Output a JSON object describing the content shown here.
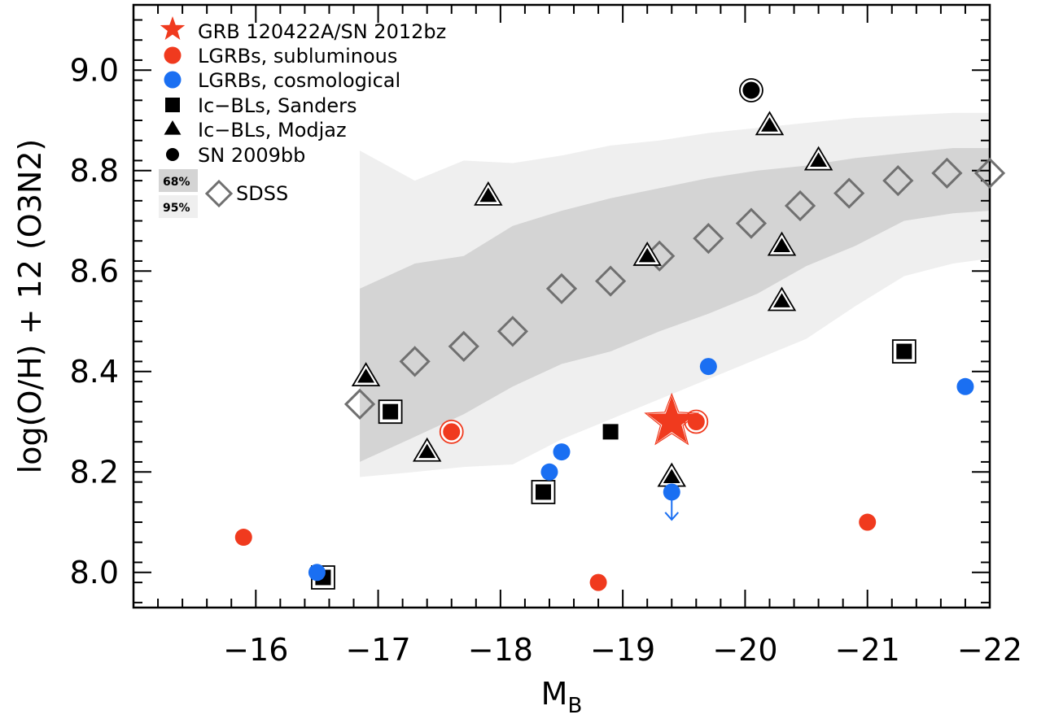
{
  "chart_data": {
    "type": "scatter",
    "xlabel": "M",
    "xlabel_sub": "B",
    "ylabel": "log(O/H) + 12 (O3N2)",
    "xlim": [
      -15,
      -22
    ],
    "ylim": [
      7.93,
      9.13
    ],
    "x_inverted": true,
    "x_ticks": [
      -16,
      -17,
      -18,
      -19,
      -20,
      -21,
      -22
    ],
    "x_tick_labels": [
      "−16",
      "−17",
      "−18",
      "−19",
      "−20",
      "−21",
      "−22"
    ],
    "y_ticks": [
      8.0,
      8.2,
      8.4,
      8.6,
      8.8,
      9.0
    ],
    "y_tick_labels": [
      "8.0",
      "8.2",
      "8.4",
      "8.6",
      "8.8",
      "9.0"
    ],
    "legend_position": "top-left",
    "colors": {
      "red": "#f03a1e",
      "blue": "#1a6ff2",
      "black": "#000000",
      "diamond": "#707070",
      "band68": "#d4d4d4",
      "band95": "#efefef"
    },
    "series": [
      {
        "name": "GRB 120422A/SN 2012bz",
        "marker": "star",
        "color": "#f03a1e",
        "points": [
          [
            -19.4,
            8.3
          ]
        ]
      },
      {
        "name": "LGRBs, subluminous",
        "marker": "circle",
        "color": "#f03a1e",
        "points": [
          [
            -15.9,
            8.07
          ],
          [
            -17.6,
            8.28
          ],
          [
            -18.8,
            7.98
          ],
          [
            -19.6,
            8.3
          ],
          [
            -21.0,
            8.1
          ]
        ],
        "ringed": [
          false,
          true,
          false,
          true,
          false
        ]
      },
      {
        "name": "LGRBs, cosmological",
        "marker": "circle",
        "color": "#1a6ff2",
        "points": [
          [
            -16.5,
            8.0
          ],
          [
            -18.4,
            8.2
          ],
          [
            -18.5,
            8.24
          ],
          [
            -19.4,
            8.16
          ],
          [
            -19.7,
            8.41
          ],
          [
            -21.8,
            8.37
          ]
        ],
        "upper_limit": [
          false,
          false,
          false,
          true,
          false,
          false
        ]
      },
      {
        "name": "Ic−BLs, Sanders",
        "marker": "square",
        "color": "#000000",
        "points": [
          [
            -16.55,
            7.99
          ],
          [
            -17.1,
            8.32
          ],
          [
            -18.35,
            8.16
          ],
          [
            -18.9,
            8.28
          ],
          [
            -21.3,
            8.44
          ]
        ],
        "ringed": [
          true,
          true,
          true,
          false,
          true
        ]
      },
      {
        "name": "Ic−BLs, Modjaz",
        "marker": "triangle",
        "color": "#000000",
        "points": [
          [
            -16.9,
            8.39
          ],
          [
            -17.4,
            8.24
          ],
          [
            -17.9,
            8.75
          ],
          [
            -19.2,
            8.63
          ],
          [
            -19.4,
            8.19
          ],
          [
            -20.2,
            8.89
          ],
          [
            -20.3,
            8.65
          ],
          [
            -20.3,
            8.54
          ],
          [
            -20.6,
            8.82
          ]
        ]
      },
      {
        "name": "SN 2009bb",
        "marker": "circle",
        "color": "#000000",
        "points": [
          [
            -20.05,
            8.96
          ]
        ],
        "ringed": [
          true
        ]
      },
      {
        "name": "SDSS",
        "marker": "diamond",
        "color": "#707070",
        "points": [
          [
            -16.85,
            8.335
          ],
          [
            -17.3,
            8.42
          ],
          [
            -17.7,
            8.45
          ],
          [
            -18.1,
            8.48
          ],
          [
            -18.5,
            8.565
          ],
          [
            -18.9,
            8.58
          ],
          [
            -19.3,
            8.63
          ],
          [
            -19.7,
            8.665
          ],
          [
            -20.05,
            8.695
          ],
          [
            -20.45,
            8.73
          ],
          [
            -20.85,
            8.755
          ],
          [
            -21.25,
            8.78
          ],
          [
            -21.65,
            8.795
          ],
          [
            -22.0,
            8.795
          ]
        ]
      }
    ],
    "bands": [
      {
        "name": "95%",
        "x": [
          -16.85,
          -17.3,
          -17.7,
          -18.1,
          -18.5,
          -18.9,
          -19.3,
          -19.7,
          -20.1,
          -20.5,
          -20.9,
          -21.3,
          -21.7,
          -22.0
        ],
        "upper": [
          8.84,
          8.78,
          8.82,
          8.815,
          8.83,
          8.85,
          8.86,
          8.875,
          8.885,
          8.895,
          8.905,
          8.91,
          8.915,
          8.915
        ],
        "lower": [
          8.19,
          8.2,
          8.21,
          8.215,
          8.265,
          8.305,
          8.345,
          8.385,
          8.425,
          8.465,
          8.53,
          8.59,
          8.615,
          8.625
        ]
      },
      {
        "name": "68%",
        "x": [
          -16.85,
          -17.3,
          -17.7,
          -18.1,
          -18.5,
          -18.9,
          -19.3,
          -19.7,
          -20.1,
          -20.5,
          -20.9,
          -21.3,
          -21.7,
          -22.0
        ],
        "upper": [
          8.565,
          8.615,
          8.63,
          8.69,
          8.72,
          8.745,
          8.765,
          8.785,
          8.8,
          8.81,
          8.825,
          8.835,
          8.845,
          8.845
        ],
        "lower": [
          8.22,
          8.27,
          8.315,
          8.37,
          8.415,
          8.44,
          8.48,
          8.515,
          8.555,
          8.61,
          8.65,
          8.7,
          8.715,
          8.72
        ]
      }
    ]
  }
}
